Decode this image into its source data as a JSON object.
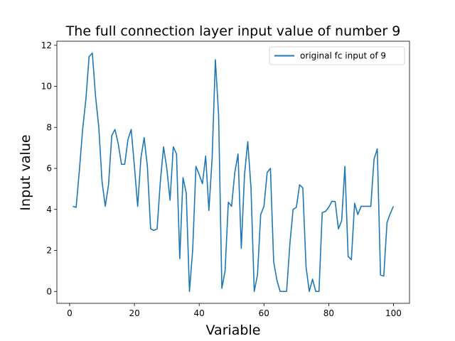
{
  "chart_data": {
    "type": "line",
    "title": "The full connection layer input value of number 9",
    "xlabel": "Variable",
    "ylabel": "Input value",
    "xlim": [
      -3.95,
      104.95
    ],
    "ylim": [
      -0.58,
      12.2
    ],
    "xticks": [
      0,
      20,
      40,
      60,
      80,
      100
    ],
    "yticks": [
      0,
      2,
      4,
      6,
      8,
      10,
      12
    ],
    "grid": false,
    "legend_position": "top-right",
    "series": [
      {
        "name": "original fc input of 9",
        "color": "#1f77b4",
        "x": [
          1,
          2,
          3,
          4,
          5,
          6,
          7,
          8,
          9,
          10,
          11,
          12,
          13,
          14,
          15,
          16,
          17,
          18,
          19,
          20,
          21,
          22,
          23,
          24,
          25,
          26,
          27,
          28,
          29,
          30,
          31,
          32,
          33,
          34,
          35,
          36,
          37,
          38,
          39,
          40,
          41,
          42,
          43,
          44,
          45,
          46,
          47,
          48,
          49,
          50,
          51,
          52,
          53,
          54,
          55,
          56,
          57,
          58,
          59,
          60,
          61,
          62,
          63,
          64,
          65,
          66,
          67,
          68,
          69,
          70,
          71,
          72,
          73,
          74,
          75,
          76,
          77,
          78,
          79,
          80,
          81,
          82,
          83,
          84,
          85,
          86,
          87,
          88,
          89,
          90,
          91,
          92,
          93,
          94,
          95,
          96,
          97,
          98,
          99,
          100
        ],
        "y": [
          4.15,
          4.1,
          5.9,
          7.9,
          9.35,
          11.45,
          11.62,
          9.5,
          8.0,
          5.35,
          4.15,
          5.2,
          7.6,
          7.9,
          7.2,
          6.2,
          6.2,
          7.4,
          7.9,
          6.1,
          4.15,
          6.5,
          7.5,
          6.1,
          3.05,
          2.98,
          3.05,
          5.35,
          7.05,
          6.0,
          4.45,
          7.05,
          6.7,
          1.6,
          5.55,
          4.8,
          0.0,
          2.05,
          6.1,
          5.7,
          5.25,
          6.6,
          3.95,
          6.5,
          11.3,
          8.6,
          0.15,
          1.0,
          4.35,
          4.15,
          5.8,
          6.7,
          2.1,
          5.7,
          7.3,
          5.05,
          0.0,
          0.8,
          3.75,
          4.15,
          5.8,
          6.0,
          1.45,
          0.55,
          0.0,
          0.0,
          0.0,
          2.3,
          4.0,
          4.1,
          5.2,
          5.05,
          1.2,
          0.0,
          0.6,
          0.0,
          0.0,
          3.85,
          3.9,
          4.1,
          4.4,
          4.38,
          3.05,
          3.45,
          6.1,
          1.7,
          1.55,
          4.3,
          3.75,
          4.15,
          4.15,
          4.15,
          4.15,
          6.45,
          6.95,
          0.8,
          0.75,
          3.35,
          3.8,
          4.15
        ]
      }
    ]
  }
}
